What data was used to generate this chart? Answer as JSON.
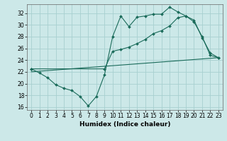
{
  "xlabel": "Humidex (Indice chaleur)",
  "background_color": "#cce8e8",
  "grid_color": "#a8d0d0",
  "line_color": "#1a6b5a",
  "xlim": [
    -0.5,
    23.5
  ],
  "ylim": [
    15.5,
    33.5
  ],
  "yticks": [
    16,
    18,
    20,
    22,
    24,
    26,
    28,
    30,
    32
  ],
  "xticks": [
    0,
    1,
    2,
    3,
    4,
    5,
    6,
    7,
    8,
    9,
    10,
    11,
    12,
    13,
    14,
    15,
    16,
    17,
    18,
    19,
    20,
    21,
    22,
    23
  ],
  "line1_x": [
    0,
    1,
    2,
    3,
    4,
    5,
    6,
    7,
    8,
    9,
    10,
    11,
    12,
    13,
    14,
    15,
    16,
    17,
    18,
    19,
    20,
    21,
    22,
    23
  ],
  "line1_y": [
    22.5,
    21.8,
    21.0,
    19.8,
    19.2,
    18.8,
    17.8,
    16.2,
    17.8,
    21.5,
    28.0,
    31.5,
    29.7,
    31.3,
    31.5,
    31.8,
    31.8,
    33.0,
    32.2,
    31.5,
    30.8,
    27.8,
    25.2,
    24.4
  ],
  "line2_x": [
    0,
    9,
    10,
    11,
    12,
    13,
    14,
    15,
    16,
    17,
    18,
    19,
    20,
    21,
    22,
    23
  ],
  "line2_y": [
    22.5,
    22.5,
    25.5,
    25.8,
    26.2,
    26.8,
    27.5,
    28.5,
    29.0,
    29.8,
    31.2,
    31.5,
    30.5,
    28.0,
    24.8,
    24.4
  ],
  "line3_x": [
    0,
    23
  ],
  "line3_y": [
    22.0,
    24.4
  ],
  "tick_fontsize": 5.5,
  "xlabel_fontsize": 6.5
}
